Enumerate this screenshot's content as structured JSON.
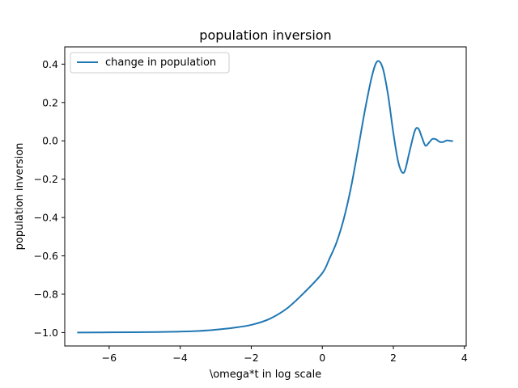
{
  "chart_data": {
    "type": "line",
    "title": "population inversion",
    "xlabel": "\\omega*t in log scale",
    "ylabel": "population inversion",
    "xlim": [
      -7.25,
      4.05
    ],
    "ylim": [
      -1.07,
      0.49
    ],
    "xticks": [
      -6,
      -4,
      -2,
      0,
      2,
      4
    ],
    "xtick_labels": [
      "−6",
      "−4",
      "−2",
      "0",
      "2",
      "4"
    ],
    "yticks": [
      0.4,
      0.2,
      0.0,
      -0.2,
      -0.4,
      -0.6,
      -0.8,
      -1.0
    ],
    "ytick_labels": [
      "0.4",
      "0.2",
      "0.0",
      "−0.2",
      "−0.4",
      "−0.6",
      "−0.8",
      "−1.0"
    ],
    "grid": false,
    "legend_position": "upper left",
    "series": [
      {
        "name": "change in population",
        "color": "#1f77b4",
        "x": [
          -6.9,
          -6.0,
          -5.0,
          -4.0,
          -3.5,
          -3.0,
          -2.5,
          -2.0,
          -1.5,
          -1.0,
          -0.5,
          0.0,
          0.2,
          0.4,
          0.6,
          0.8,
          1.0,
          1.2,
          1.4,
          1.55,
          1.7,
          1.85,
          2.0,
          2.15,
          2.3,
          2.45,
          2.6,
          2.7,
          2.8,
          2.9,
          3.0,
          3.1,
          3.2,
          3.3,
          3.4,
          3.5,
          3.6,
          3.68
        ],
        "y": [
          -1.0,
          -0.999,
          -0.998,
          -0.995,
          -0.992,
          -0.985,
          -0.975,
          -0.96,
          -0.93,
          -0.875,
          -0.79,
          -0.69,
          -0.615,
          -0.53,
          -0.41,
          -0.25,
          -0.05,
          0.16,
          0.34,
          0.415,
          0.38,
          0.24,
          0.04,
          -0.12,
          -0.165,
          -0.06,
          0.05,
          0.065,
          0.02,
          -0.025,
          -0.01,
          0.01,
          0.008,
          -0.005,
          -0.006,
          0.002,
          0.0,
          -0.002
        ]
      }
    ]
  }
}
